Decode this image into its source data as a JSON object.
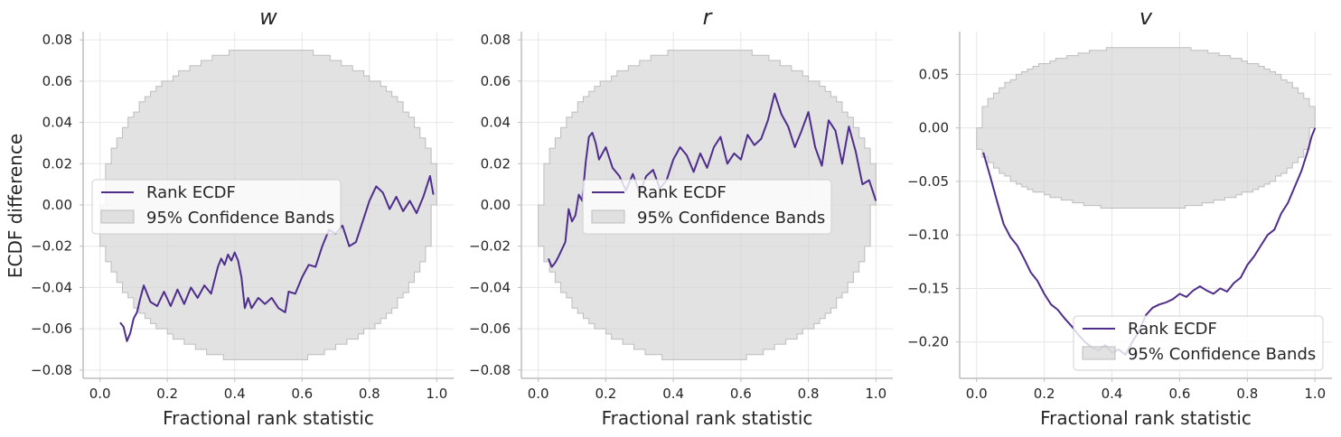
{
  "colors": {
    "line": "#4f2d8c",
    "band_fill": "#d3d3d3",
    "band_edge": "#bdbdbd",
    "grid": "#e6e6e6",
    "spine": "#bdbdbd"
  },
  "figure": {
    "ylabel": "ECDF difference",
    "xlabel": "Fractional rank statistic"
  },
  "chart_data": [
    {
      "type": "line",
      "title": "w",
      "xlabel": "Fractional rank statistic",
      "ylabel": "ECDF difference",
      "xlim": [
        -0.05,
        1.05
      ],
      "ylim": [
        -0.084,
        0.084
      ],
      "xticks": [
        0.0,
        0.2,
        0.4,
        0.6,
        0.8,
        1.0
      ],
      "xtick_labels": [
        "0.0",
        "0.2",
        "0.4",
        "0.6",
        "0.8",
        "1.0"
      ],
      "yticks": [
        -0.08,
        -0.06,
        -0.04,
        -0.02,
        0.0,
        0.02,
        0.04,
        0.06,
        0.08
      ],
      "ytick_labels": [
        "−0.08",
        "−0.06",
        "−0.04",
        "−0.02",
        "0.00",
        "0.02",
        "0.04",
        "0.06",
        "0.08"
      ],
      "grid": true,
      "legend": {
        "position": "center-left",
        "entries": [
          "Rank ECDF",
          "95% Confidence Bands"
        ]
      },
      "band": {
        "name": "95% Confidence Bands",
        "x_range": [
          0.0,
          1.0
        ],
        "half_width": 0.076
      },
      "series": [
        {
          "name": "Rank ECDF",
          "x": [
            0.06,
            0.07,
            0.08,
            0.09,
            0.1,
            0.11,
            0.12,
            0.13,
            0.14,
            0.15,
            0.17,
            0.19,
            0.21,
            0.23,
            0.25,
            0.27,
            0.29,
            0.31,
            0.33,
            0.35,
            0.36,
            0.37,
            0.38,
            0.39,
            0.4,
            0.41,
            0.42,
            0.43,
            0.44,
            0.45,
            0.47,
            0.49,
            0.51,
            0.53,
            0.55,
            0.56,
            0.58,
            0.6,
            0.62,
            0.64,
            0.66,
            0.68,
            0.7,
            0.72,
            0.74,
            0.76,
            0.78,
            0.8,
            0.82,
            0.84,
            0.86,
            0.88,
            0.9,
            0.92,
            0.94,
            0.96,
            0.97,
            0.98,
            0.99
          ],
          "y": [
            -0.057,
            -0.059,
            -0.066,
            -0.062,
            -0.055,
            -0.052,
            -0.045,
            -0.039,
            -0.043,
            -0.047,
            -0.049,
            -0.042,
            -0.049,
            -0.041,
            -0.048,
            -0.04,
            -0.045,
            -0.039,
            -0.043,
            -0.03,
            -0.026,
            -0.029,
            -0.024,
            -0.027,
            -0.023,
            -0.027,
            -0.035,
            -0.05,
            -0.045,
            -0.05,
            -0.045,
            -0.048,
            -0.045,
            -0.05,
            -0.052,
            -0.042,
            -0.043,
            -0.035,
            -0.029,
            -0.03,
            -0.02,
            -0.012,
            -0.014,
            -0.01,
            -0.02,
            -0.018,
            -0.008,
            0.002,
            0.009,
            0.006,
            -0.002,
            0.004,
            -0.003,
            0.002,
            -0.004,
            0.004,
            0.009,
            0.014,
            0.005
          ]
        }
      ]
    },
    {
      "type": "line",
      "title": "r",
      "xlabel": "Fractional rank statistic",
      "ylabel": "",
      "xlim": [
        -0.05,
        1.05
      ],
      "ylim": [
        -0.084,
        0.084
      ],
      "xticks": [
        0.0,
        0.2,
        0.4,
        0.6,
        0.8,
        1.0
      ],
      "xtick_labels": [
        "0.0",
        "0.2",
        "0.4",
        "0.6",
        "0.8",
        "1.0"
      ],
      "yticks": [
        -0.08,
        -0.06,
        -0.04,
        -0.02,
        0.0,
        0.02,
        0.04,
        0.06,
        0.08
      ],
      "ytick_labels": [
        "−0.08",
        "−0.06",
        "−0.04",
        "−0.02",
        "0.00",
        "0.02",
        "0.04",
        "0.06",
        "0.08"
      ],
      "grid": true,
      "legend": {
        "position": "center",
        "entries": [
          "Rank ECDF",
          "95% Confidence Bands"
        ]
      },
      "band": {
        "name": "95% Confidence Bands",
        "x_range": [
          0.0,
          1.0
        ],
        "half_width": 0.076
      },
      "series": [
        {
          "name": "Rank ECDF",
          "x": [
            0.03,
            0.04,
            0.05,
            0.06,
            0.08,
            0.09,
            0.1,
            0.11,
            0.12,
            0.13,
            0.14,
            0.15,
            0.16,
            0.17,
            0.18,
            0.2,
            0.22,
            0.24,
            0.26,
            0.28,
            0.3,
            0.32,
            0.34,
            0.36,
            0.38,
            0.4,
            0.42,
            0.44,
            0.46,
            0.48,
            0.5,
            0.52,
            0.54,
            0.56,
            0.58,
            0.6,
            0.62,
            0.64,
            0.66,
            0.68,
            0.7,
            0.72,
            0.74,
            0.76,
            0.78,
            0.8,
            0.82,
            0.84,
            0.86,
            0.88,
            0.9,
            0.92,
            0.94,
            0.96,
            0.98,
            1.0
          ],
          "y": [
            -0.026,
            -0.03,
            -0.028,
            -0.025,
            -0.018,
            -0.002,
            -0.008,
            -0.005,
            0.005,
            0.002,
            0.02,
            0.033,
            0.035,
            0.03,
            0.022,
            0.028,
            0.018,
            0.014,
            0.007,
            0.015,
            0.006,
            0.014,
            0.017,
            0.008,
            0.012,
            0.022,
            0.028,
            0.024,
            0.016,
            0.025,
            0.018,
            0.028,
            0.033,
            0.02,
            0.025,
            0.022,
            0.034,
            0.029,
            0.032,
            0.041,
            0.054,
            0.044,
            0.038,
            0.028,
            0.036,
            0.045,
            0.028,
            0.019,
            0.041,
            0.036,
            0.02,
            0.038,
            0.026,
            0.01,
            0.012,
            0.002
          ]
        }
      ]
    },
    {
      "type": "line",
      "title": "v",
      "xlabel": "Fractional rank statistic",
      "ylabel": "",
      "xlim": [
        -0.05,
        1.05
      ],
      "ylim": [
        -0.234,
        0.09
      ],
      "xticks": [
        0.0,
        0.2,
        0.4,
        0.6,
        0.8,
        1.0
      ],
      "xtick_labels": [
        "0.0",
        "0.2",
        "0.4",
        "0.6",
        "0.8",
        "1.0"
      ],
      "yticks": [
        -0.2,
        -0.15,
        -0.1,
        -0.05,
        0.0,
        0.05
      ],
      "ytick_labels": [
        "−0.20",
        "−0.15",
        "−0.10",
        "−0.05",
        "0.00",
        "0.05"
      ],
      "grid": true,
      "legend": {
        "position": "lower-right",
        "entries": [
          "Rank ECDF",
          "95% Confidence Bands"
        ]
      },
      "band": {
        "name": "95% Confidence Bands",
        "x_range": [
          0.0,
          1.0
        ],
        "half_width": 0.076
      },
      "series": [
        {
          "name": "Rank ECDF",
          "x": [
            0.02,
            0.04,
            0.06,
            0.08,
            0.1,
            0.12,
            0.14,
            0.16,
            0.18,
            0.2,
            0.22,
            0.24,
            0.26,
            0.28,
            0.3,
            0.32,
            0.34,
            0.36,
            0.38,
            0.4,
            0.42,
            0.44,
            0.46,
            0.48,
            0.5,
            0.52,
            0.54,
            0.56,
            0.58,
            0.6,
            0.62,
            0.64,
            0.66,
            0.68,
            0.7,
            0.72,
            0.74,
            0.76,
            0.78,
            0.8,
            0.82,
            0.84,
            0.86,
            0.88,
            0.9,
            0.92,
            0.94,
            0.96,
            0.98,
            0.99,
            1.0
          ],
          "y": [
            -0.023,
            -0.045,
            -0.068,
            -0.09,
            -0.102,
            -0.11,
            -0.122,
            -0.135,
            -0.143,
            -0.155,
            -0.165,
            -0.17,
            -0.178,
            -0.185,
            -0.193,
            -0.2,
            -0.205,
            -0.208,
            -0.203,
            -0.21,
            -0.207,
            -0.212,
            -0.2,
            -0.19,
            -0.175,
            -0.168,
            -0.165,
            -0.163,
            -0.16,
            -0.155,
            -0.158,
            -0.152,
            -0.148,
            -0.152,
            -0.155,
            -0.15,
            -0.153,
            -0.145,
            -0.14,
            -0.128,
            -0.12,
            -0.11,
            -0.1,
            -0.095,
            -0.08,
            -0.07,
            -0.055,
            -0.04,
            -0.02,
            -0.008,
            0.0
          ]
        }
      ]
    }
  ]
}
